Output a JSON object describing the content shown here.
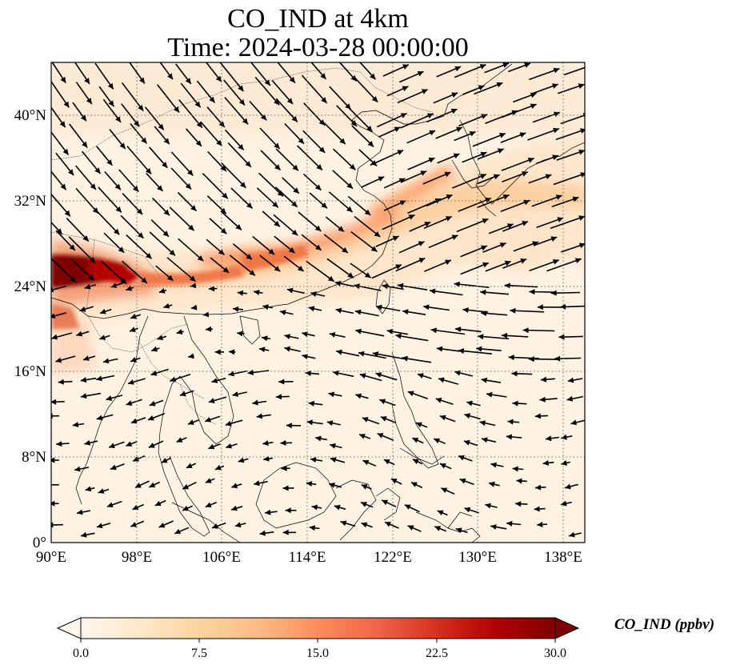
{
  "title": {
    "line1": "CO_IND at 4km",
    "line2": "Time: 2024-03-28 00:00:00"
  },
  "map": {
    "lon_range": [
      90,
      140
    ],
    "lat_range": [
      0,
      45
    ],
    "lon_ticks": [
      "90°E",
      "98°E",
      "106°E",
      "114°E",
      "122°E",
      "130°E",
      "138°E"
    ],
    "lat_ticks": [
      "0°",
      "8°N",
      "16°N",
      "24°N",
      "32°N",
      "40°N"
    ],
    "gridlines": "dotted",
    "field_colormap": "OrRd",
    "arrow_color": "#000000",
    "features": [
      "coastlines",
      "country-borders",
      "co-concentration-field",
      "wind-vectors"
    ]
  },
  "colorbar": {
    "ticks": [
      "0.0",
      "7.5",
      "15.0",
      "22.5",
      "30.0"
    ],
    "vmin": 0,
    "vmax": 30,
    "extend": "both",
    "label": "CO_IND (ppbv)",
    "colors": [
      "#fff7ec",
      "#fee8c8",
      "#fdd49e",
      "#fdbb84",
      "#fc8d59",
      "#ef6548",
      "#d7301f",
      "#b30000",
      "#7f0000"
    ]
  }
}
